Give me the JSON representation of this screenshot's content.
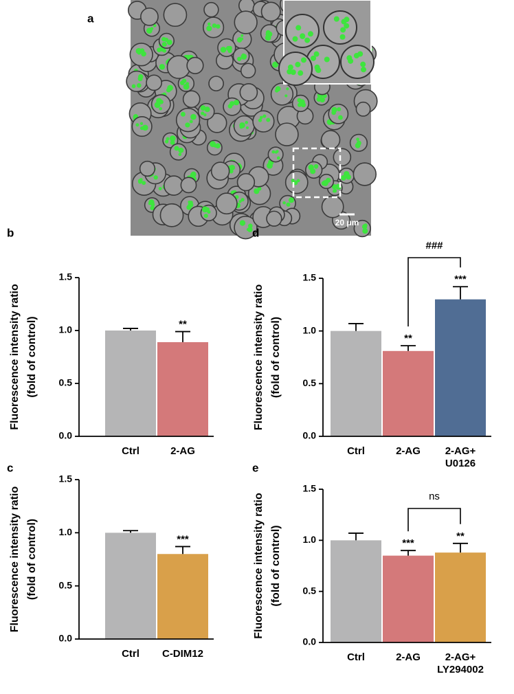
{
  "panel_a": {
    "label": "a",
    "scale_bar": "20 μm"
  },
  "chart_data": [
    {
      "type": "bar",
      "label": "b",
      "ylabel": [
        "Fluorescence intensity ratio",
        "(fold of control)"
      ],
      "categories": [
        "Ctrl",
        "2-AG"
      ],
      "values": [
        1.0,
        0.89
      ],
      "errors": [
        0.02,
        0.1
      ],
      "colors": [
        "#b5b5b6",
        "#d4797a"
      ],
      "significance": [
        null,
        "**"
      ],
      "ylim": [
        0,
        1.5
      ],
      "yticks": [
        {
          "value": 0,
          "label": "0.0"
        },
        0.5,
        {
          "value": 1,
          "label": "1.0"
        },
        1.5
      ]
    },
    {
      "type": "bar",
      "label": "c",
      "ylabel": [
        "Fluorescence intensity ratio",
        "(fold of control)"
      ],
      "categories": [
        "Ctrl",
        "C-DIM12"
      ],
      "values": [
        1.0,
        0.8
      ],
      "errors": [
        0.02,
        0.07
      ],
      "colors": [
        "#b5b5b6",
        "#d9a04a"
      ],
      "significance": [
        null,
        "***"
      ],
      "ylim": [
        0,
        1.5
      ],
      "yticks": [
        {
          "value": 0,
          "label": "0.0"
        },
        0.5,
        {
          "value": 1,
          "label": "1.0"
        },
        1.5
      ]
    },
    {
      "type": "bar",
      "label": "d",
      "ylabel": [
        "Fluorescence intensity ratio",
        "(fold of control)"
      ],
      "categories": [
        "Ctrl",
        "2-AG",
        "2-AG+\nU0126"
      ],
      "values": [
        1.0,
        0.81,
        1.3
      ],
      "errors": [
        0.07,
        0.05,
        0.12
      ],
      "colors": [
        "#b5b5b6",
        "#d4797a",
        "#506d94"
      ],
      "significance": [
        null,
        "**",
        "***"
      ],
      "comparison": {
        "from": "2-AG",
        "to": "2-AG+\nU0126",
        "text": "###"
      },
      "ylim": [
        0,
        1.5
      ],
      "yticks": [
        {
          "value": 0,
          "label": "0.0"
        },
        0.5,
        {
          "value": 1,
          "label": "1.0"
        },
        1.5
      ]
    },
    {
      "type": "bar",
      "label": "e",
      "ylabel": [
        "Fluorescence intensity ratio",
        "(fold of control)"
      ],
      "categories": [
        "Ctrl",
        "2-AG",
        "2-AG+\nLY294002"
      ],
      "values": [
        1.0,
        0.85,
        0.88
      ],
      "errors": [
        0.07,
        0.05,
        0.09
      ],
      "colors": [
        "#b5b5b6",
        "#d4797a",
        "#d9a04a"
      ],
      "significance": [
        null,
        "***",
        "**"
      ],
      "comparison": {
        "from": "2-AG",
        "to": "2-AG+\nLY294002",
        "text": "ns"
      },
      "ylim": [
        0,
        1.5
      ],
      "yticks": [
        {
          "value": 0,
          "label": "0.0"
        },
        0.5,
        {
          "value": 1,
          "label": "1.0"
        },
        1.5
      ]
    }
  ]
}
